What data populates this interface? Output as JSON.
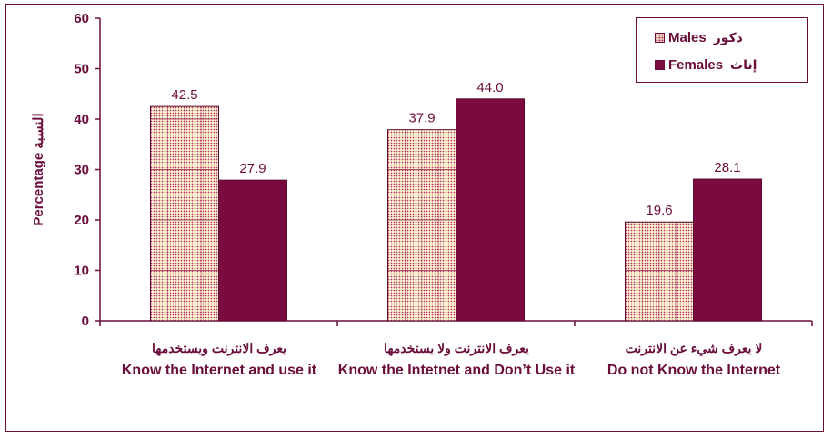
{
  "chart_data": {
    "type": "bar",
    "ylabel": "Percentage النسبة",
    "ylim": [
      0,
      60
    ],
    "yticks": [
      0,
      10,
      20,
      30,
      40,
      50,
      60
    ],
    "categories": [
      {
        "ar": "يعرف الانترنت ويستخدمها",
        "en": "Know the Internet and use it"
      },
      {
        "ar": "يعرف الانترنت ولا يستخدمها",
        "en": "Know the Intetnet and Don’t Use it"
      },
      {
        "ar": "لا يعرف شيء عن الانترنت",
        "en": "Do not Know the Internet"
      }
    ],
    "series": [
      {
        "name": "Males ذكور",
        "name_en": "Males",
        "name_ar": "ذكور",
        "values": [
          42.5,
          37.9,
          19.6
        ],
        "labels": [
          "42.5",
          "37.9",
          "19.6"
        ],
        "color": "#fdf5cf",
        "dot_color": "#b0306a"
      },
      {
        "name": "Females إناث",
        "name_en": "Females",
        "name_ar": "إناث",
        "values": [
          27.9,
          44.0,
          28.1
        ],
        "labels": [
          "27.9",
          "44.0",
          "28.1"
        ],
        "color": "#7a0a40"
      }
    ],
    "legend_position": "top-right",
    "grid": false
  }
}
